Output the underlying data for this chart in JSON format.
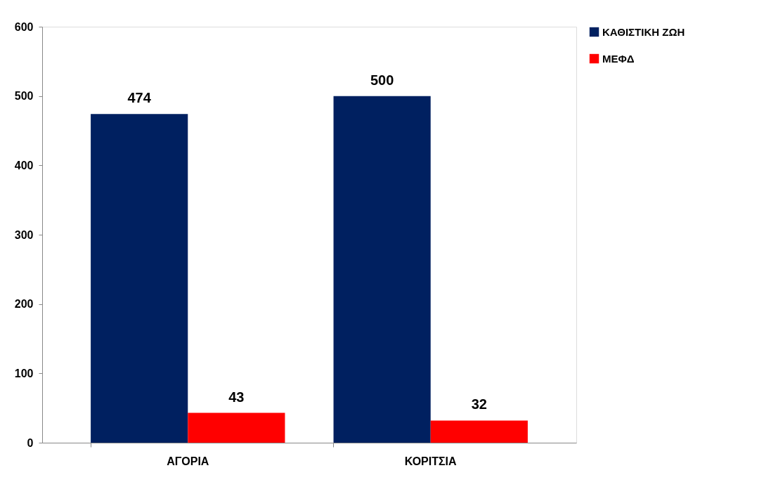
{
  "chart_data": {
    "type": "bar",
    "categories": [
      "ΑΓΟΡΙΑ",
      "ΚΟΡΙΤΣΙΑ"
    ],
    "series": [
      {
        "name": "ΚΑΘΙΣΤΙΚΗ ΖΩΗ",
        "color": "#002060",
        "values": [
          474,
          500
        ]
      },
      {
        "name": "ΜΕΦΔ",
        "color": "#ff0000",
        "values": [
          43,
          32
        ]
      }
    ],
    "ylim": [
      0,
      600
    ],
    "yticks": [
      0,
      100,
      200,
      300,
      400,
      500,
      600
    ],
    "grid": false,
    "legend": "right",
    "data_labels": true
  }
}
